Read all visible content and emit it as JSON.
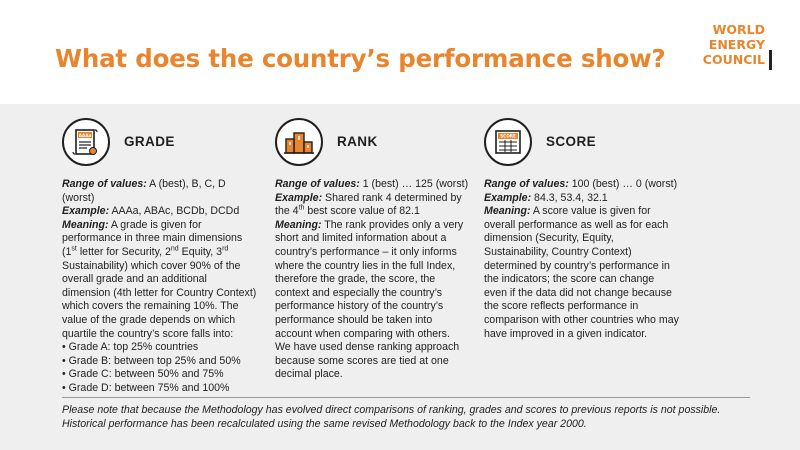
{
  "header": {
    "title": "What does the country’s performance show?",
    "logo_lines": [
      "WORLD",
      "ENERGY",
      "COUNCIL"
    ]
  },
  "colors": {
    "accent": "#e8852d",
    "panel_bg": "#efefef",
    "header_bg": "#ffffff"
  },
  "grade": {
    "title": "GRADE",
    "icon": "certificate-icon",
    "icon_badge": "AAAa",
    "range_label": "Range of values:",
    "range_value": " A (best), B, C, D (worst)",
    "example_label": "Example:",
    "example_value": " AAAa, ABAc, BCDb, DCDd",
    "meaning_label": "Meaning:",
    "meaning_a": " A grade is given for performance in three main dimensions (1",
    "meaning_sup1": "st",
    "meaning_b": " letter for Security, 2",
    "meaning_sup2": "nd",
    "meaning_c": " Equity, 3",
    "meaning_sup3": "rd",
    "meaning_d": " Sustainability) which cover 90% of the overall grade and an additional dimension (4th letter for Country Context) which covers the remaining 10%. The value of the grade depends on which quartile the country’s score falls into:",
    "bullets": [
      "Grade A: top 25% countries",
      "Grade B: between top 25% and 50%",
      "Grade C: between 50% and 75%",
      "Grade D: between 75% and 100%"
    ]
  },
  "rank": {
    "title": "RANK",
    "icon": "podium-icon",
    "range_label": "Range of values:",
    "range_value": " 1 (best) … 125 (worst)",
    "example_label": "Example:",
    "example_a": " Shared rank 4 determined by the 4",
    "example_sup": "th",
    "example_b": " best score value of 82.1",
    "meaning_label": "Meaning:",
    "meaning_value": " The rank provides only a very short and limited information about a country’s performance – it only informs where the country lies in the full Index, therefore the grade, the score, the context and especially the country’s performance history of the country’s performance should be taken into account when comparing with others.",
    "extra": "We have used dense ranking approach because some scores are tied at one decimal place."
  },
  "score": {
    "title": "SCORE",
    "icon": "scoreboard-icon",
    "icon_badge": "SCORE",
    "range_label": "Range of values:",
    "range_value": " 100 (best) … 0 (worst)",
    "example_label": "Example:",
    "example_value": " 84.3, 53.4, 32.1",
    "meaning_label": "Meaning:",
    "meaning_value": " A score value is given for overall performance as well as for each dimension (Security, Equity, Sustainability, Country Context) determined by country’s performance in the indicators; the score can change even if the data did not change because the score reflects performance in comparison with other countries who may have improved in a given indicator."
  },
  "footnote": "Please note that because the Methodology has evolved direct comparisons of ranking, grades and scores to previous reports is not possible. Historical performance has been recalculated using the same revised Methodology back to the Index year 2000."
}
